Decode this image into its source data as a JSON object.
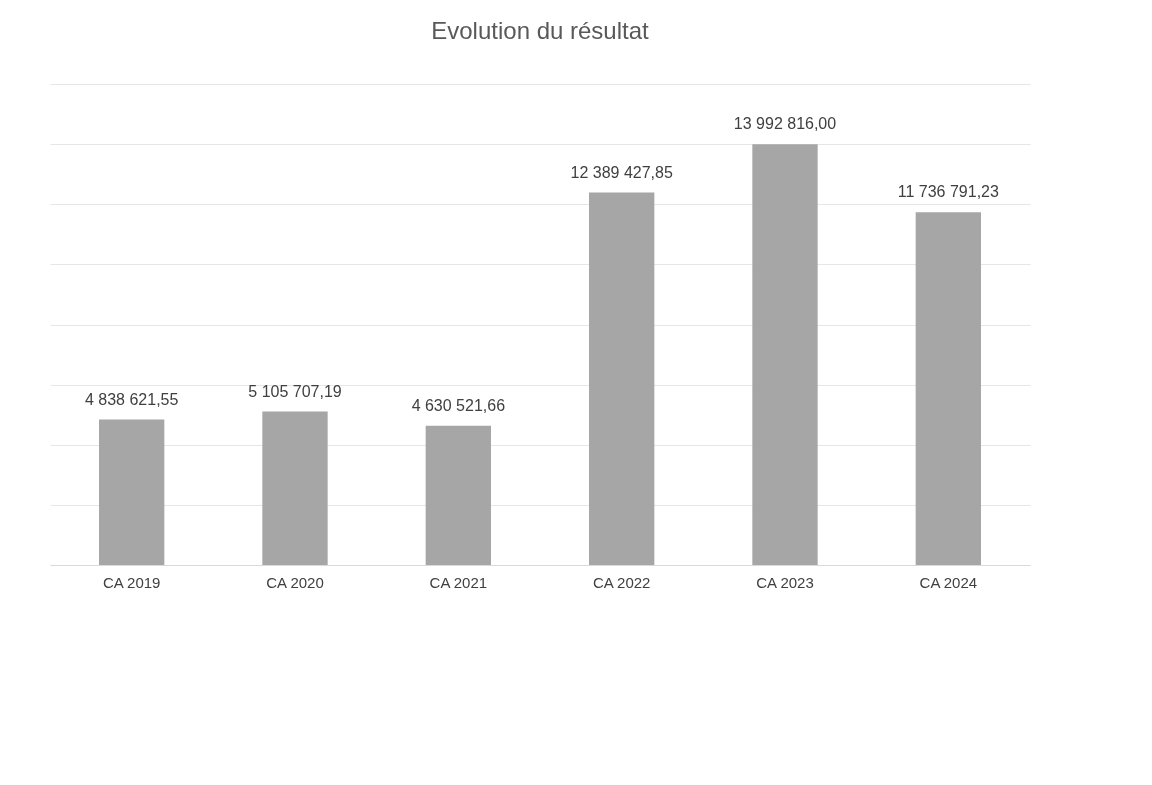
{
  "chart_data": {
    "type": "bar",
    "title": "Evolution du résultat",
    "categories": [
      "CA 2019",
      "CA 2020",
      "CA 2021",
      "CA 2022",
      "CA 2023",
      "CA 2024"
    ],
    "values": [
      4838621.55,
      5105707.19,
      4630521.66,
      12389427.85,
      13992816.0,
      11736791.23
    ],
    "value_labels": [
      "4 838 621,55",
      "5 105 707,19",
      "4 630 521,66",
      "12 389 427,85",
      "13 992 816,00",
      "11 736 791,23"
    ],
    "color": "#a6a6a6",
    "ylim": [
      0,
      16000000
    ],
    "yticks": [
      {
        "value": 0,
        "label": null
      },
      {
        "value": 2000000,
        "label": null
      },
      {
        "value": 4000000,
        "label": null
      },
      {
        "value": 6000000,
        "label": null
      },
      {
        "value": 8000000,
        "label": null
      },
      {
        "value": 10000000,
        "label": null
      },
      {
        "value": 12000000,
        "label": null
      },
      {
        "value": 14000000,
        "label": null
      },
      {
        "value": 16000000,
        "label": null
      }
    ],
    "grid": "y",
    "tick_labels": "x"
  }
}
